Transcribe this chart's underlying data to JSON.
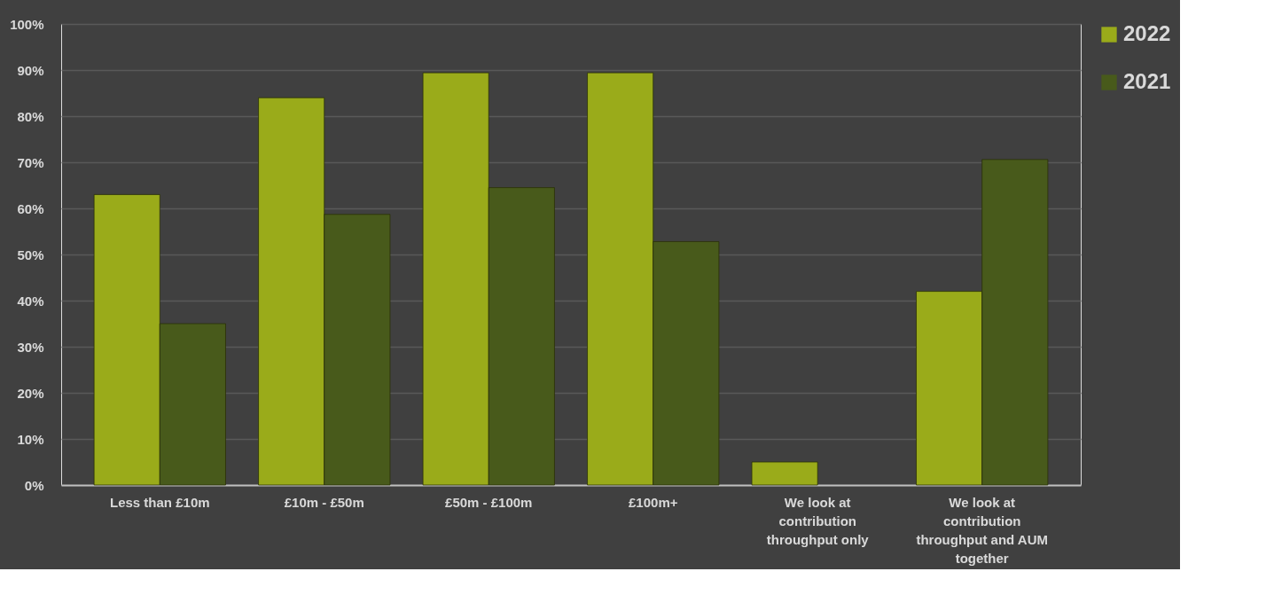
{
  "chart_data": {
    "type": "bar",
    "categories": [
      "Less than £10m",
      "£10m - £50m",
      "£50m - £100m",
      "£100m+",
      "We look at contribution throughput only",
      "We look at contribution throughput and AUM together"
    ],
    "series": [
      {
        "name": "2022",
        "color": "#9aab1a",
        "values": [
          63,
          84,
          89.4,
          89.4,
          5,
          42
        ]
      },
      {
        "name": "2021",
        "color": "#485a1b",
        "values": [
          35,
          58.7,
          64.5,
          52.8,
          null,
          70.6
        ]
      }
    ],
    "ylim": [
      0,
      100
    ],
    "yticks": [
      {
        "value": 0,
        "label": "0%"
      },
      {
        "value": 10,
        "label": "10%"
      },
      {
        "value": 20,
        "label": "20%"
      },
      {
        "value": 30,
        "label": "30%"
      },
      {
        "value": 40,
        "label": "40%"
      },
      {
        "value": 50,
        "label": "50%"
      },
      {
        "value": 60,
        "label": "60%"
      },
      {
        "value": 70,
        "label": "70%"
      },
      {
        "value": 80,
        "label": "80%"
      },
      {
        "value": 90,
        "label": "90%"
      },
      {
        "value": 100,
        "label": "100%"
      }
    ],
    "grid": "y",
    "legend": "right"
  }
}
